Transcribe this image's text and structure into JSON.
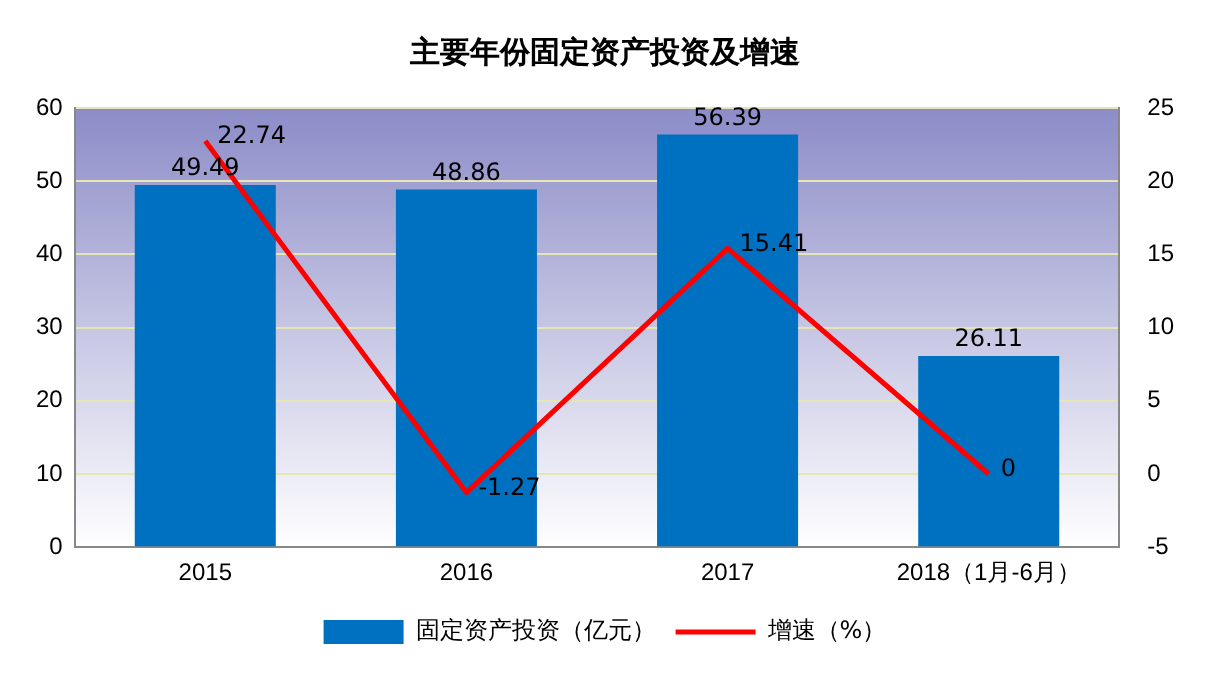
{
  "chart_data": {
    "type": "bar",
    "title": "主要年份固定资产投资及增速",
    "categories": [
      "2015",
      "2016",
      "2017",
      "2018（1月-6月）"
    ],
    "series": [
      {
        "name": "固定资产投资（亿元）",
        "color": "#0070c0",
        "values": [
          49.49,
          48.86,
          56.39,
          26.11
        ]
      },
      {
        "name": "增速（%）",
        "type": "line",
        "axis": "y2",
        "color": "#ff0000",
        "values": [
          22.74,
          -1.27,
          15.41,
          0
        ]
      }
    ],
    "ylim": [
      0,
      60
    ],
    "yticks": [
      0,
      10,
      20,
      30,
      40,
      50,
      60
    ],
    "y2lim": [
      -5,
      25
    ],
    "y2ticks": [
      -5,
      0,
      5,
      10,
      15,
      20,
      25
    ],
    "grid": "y",
    "legend": "bottom",
    "marker": "none",
    "line_style": "solid",
    "data_labels": true
  }
}
